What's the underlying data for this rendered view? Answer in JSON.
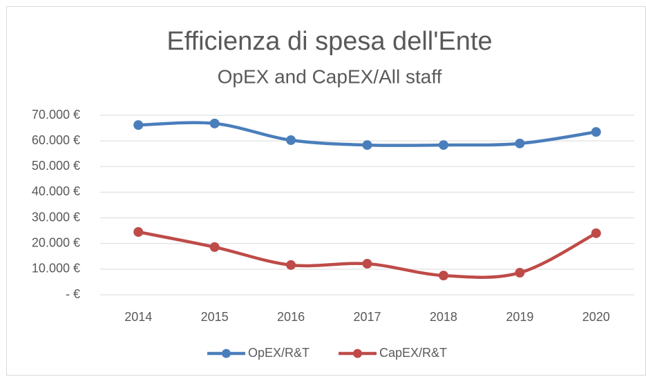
{
  "chart_data": {
    "type": "line",
    "title": "Efficienza di spesa dell'Ente",
    "subtitle": "OpEX and CapEX/All staff",
    "categories": [
      "2014",
      "2015",
      "2016",
      "2017",
      "2018",
      "2019",
      "2020"
    ],
    "series": [
      {
        "name": "OpEX/R&T",
        "color": "#4a7ebb",
        "values": [
          66200,
          66800,
          60300,
          58400,
          58400,
          59000,
          63500
        ]
      },
      {
        "name": "CapEX/R&T",
        "color": "#be4b48",
        "values": [
          24500,
          18600,
          11600,
          12100,
          7500,
          8600,
          24000
        ]
      }
    ],
    "ylim": [
      0,
      70000
    ],
    "yticks": [
      {
        "value": 0,
        "label": "-  €"
      },
      {
        "value": 10000,
        "label": "10.000 €"
      },
      {
        "value": 20000,
        "label": "20.000 €"
      },
      {
        "value": 30000,
        "label": "30.000 €"
      },
      {
        "value": 40000,
        "label": "40.000 €"
      },
      {
        "value": 50000,
        "label": "50.000 €"
      },
      {
        "value": 60000,
        "label": "60.000 €"
      },
      {
        "value": 70000,
        "label": "70.000 €"
      }
    ],
    "grid": true,
    "legend": "bottom"
  }
}
